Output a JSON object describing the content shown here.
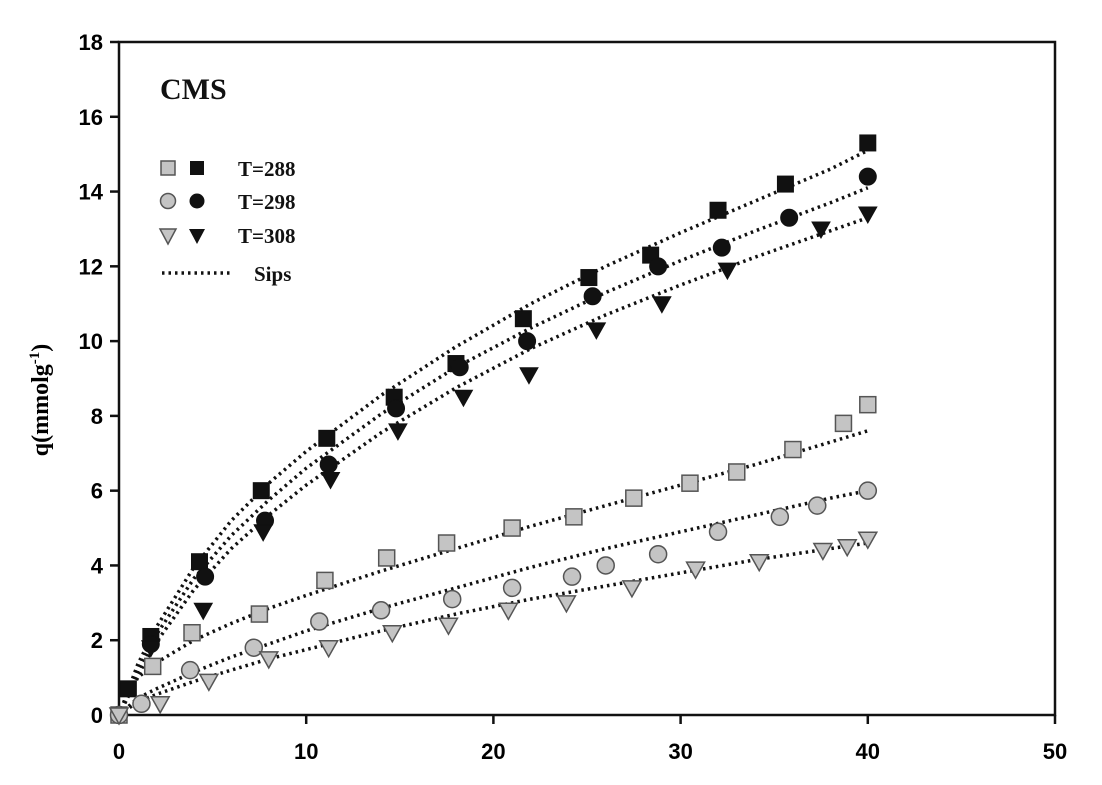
{
  "chart_data": {
    "type": "scatter",
    "panel_label": "CMS",
    "xlabel": "",
    "ylabel": "q(mmolg",
    "ylabel_sup": "-1",
    "ylabel_close": ")",
    "xlim": [
      0,
      50
    ],
    "ylim": [
      0,
      18
    ],
    "xticks": [
      0,
      10,
      20,
      30,
      40,
      50
    ],
    "yticks": [
      0,
      2,
      4,
      6,
      8,
      10,
      12,
      14,
      16,
      18
    ],
    "grid": false,
    "legend_position": "top-left",
    "legend": [
      {
        "label": "T=288",
        "marker": "square"
      },
      {
        "label": "T=298",
        "marker": "circle"
      },
      {
        "label": "T=308",
        "marker": "triangle-down"
      },
      {
        "label": "Sips",
        "marker": "dotted-line"
      }
    ],
    "colors": {
      "open_fill": "#c4c4c4",
      "open_stroke": "#555555",
      "filled": "#111111",
      "fit_line": "#111111"
    },
    "series": [
      {
        "temperature": "T=288",
        "marker": "square",
        "style": "filled",
        "x": [
          0,
          0.5,
          1.7,
          4.3,
          7.6,
          11.1,
          14.7,
          18.0,
          21.6,
          25.1,
          28.4,
          32.0,
          35.6,
          40.0
        ],
        "y": [
          0,
          0.7,
          2.1,
          4.1,
          6.0,
          7.4,
          8.5,
          9.4,
          10.6,
          11.7,
          12.3,
          13.5,
          14.2,
          15.3
        ],
        "fit_x": [
          0,
          1,
          2,
          4,
          6,
          8,
          10,
          14,
          18,
          22,
          26,
          30,
          34,
          38,
          40
        ],
        "fit_y": [
          0,
          1.35,
          2.35,
          3.95,
          5.2,
          6.2,
          7.05,
          8.55,
          9.85,
          11.0,
          12.0,
          12.9,
          13.75,
          14.6,
          15.1
        ]
      },
      {
        "temperature": "T=298",
        "marker": "circle",
        "style": "filled",
        "x": [
          0,
          1.7,
          4.6,
          7.8,
          11.2,
          14.8,
          18.2,
          21.8,
          25.3,
          28.8,
          32.2,
          35.8,
          40.0
        ],
        "y": [
          0,
          1.9,
          3.7,
          5.2,
          6.7,
          8.2,
          9.3,
          10.0,
          11.2,
          12.0,
          12.5,
          13.3,
          14.4
        ],
        "fit_x": [
          0,
          1,
          2,
          4,
          6,
          8,
          10,
          14,
          18,
          22,
          26,
          30,
          34,
          38,
          40
        ],
        "fit_y": [
          0,
          1.2,
          2.15,
          3.65,
          4.8,
          5.75,
          6.6,
          8.05,
          9.3,
          10.35,
          11.3,
          12.15,
          12.95,
          13.7,
          14.1
        ]
      },
      {
        "temperature": "T=308",
        "marker": "triangle-down",
        "style": "filled",
        "x": [
          0,
          1.7,
          4.5,
          7.7,
          11.3,
          14.9,
          18.4,
          21.9,
          25.5,
          29.0,
          32.5,
          37.5,
          40.0
        ],
        "y": [
          0,
          1.8,
          2.8,
          4.9,
          6.3,
          7.6,
          8.5,
          9.1,
          10.3,
          11.0,
          11.9,
          13.0,
          13.4
        ],
        "fit_x": [
          0,
          1,
          2,
          4,
          6,
          8,
          10,
          14,
          18,
          22,
          26,
          30,
          34,
          38,
          40
        ],
        "fit_y": [
          0,
          1.05,
          1.95,
          3.35,
          4.45,
          5.35,
          6.15,
          7.55,
          8.75,
          9.8,
          10.7,
          11.5,
          12.25,
          12.95,
          13.3
        ]
      },
      {
        "temperature": "T=288",
        "marker": "square",
        "style": "open",
        "x": [
          0,
          1.8,
          3.9,
          7.5,
          11.0,
          14.3,
          17.5,
          21.0,
          24.3,
          27.5,
          30.5,
          33.0,
          36.0,
          38.7,
          40.0
        ],
        "y": [
          0,
          1.3,
          2.2,
          2.7,
          3.6,
          4.2,
          4.6,
          5.0,
          5.3,
          5.8,
          6.2,
          6.5,
          7.1,
          7.8,
          8.3
        ],
        "fit_x": [
          0,
          1,
          2,
          4,
          6,
          8,
          10,
          14,
          18,
          22,
          26,
          30,
          34,
          38,
          40
        ],
        "fit_y": [
          0,
          1.0,
          1.4,
          2.0,
          2.45,
          2.85,
          3.2,
          3.85,
          4.45,
          5.05,
          5.6,
          6.15,
          6.7,
          7.3,
          7.6
        ]
      },
      {
        "temperature": "T=298",
        "marker": "circle",
        "style": "open",
        "x": [
          0,
          1.2,
          3.8,
          7.2,
          10.7,
          14.0,
          17.8,
          21.0,
          24.2,
          26.0,
          28.8,
          32.0,
          35.3,
          37.3,
          40.0
        ],
        "y": [
          0,
          0.3,
          1.2,
          1.8,
          2.5,
          2.8,
          3.1,
          3.4,
          3.7,
          4.0,
          4.3,
          4.9,
          5.3,
          5.6,
          6.0
        ],
        "fit_x": [
          0,
          1,
          2,
          4,
          6,
          8,
          10,
          14,
          18,
          22,
          26,
          30,
          34,
          38,
          40
        ],
        "fit_y": [
          0,
          0.45,
          0.7,
          1.15,
          1.55,
          1.9,
          2.25,
          2.85,
          3.4,
          3.95,
          4.45,
          4.9,
          5.35,
          5.8,
          6.0
        ]
      },
      {
        "temperature": "T=308",
        "marker": "triangle-down",
        "style": "open",
        "x": [
          0,
          2.2,
          4.8,
          8.0,
          11.2,
          14.6,
          17.6,
          20.8,
          23.9,
          27.4,
          30.8,
          34.2,
          37.6,
          38.9,
          40.0
        ],
        "y": [
          0,
          0.3,
          0.9,
          1.5,
          1.8,
          2.2,
          2.4,
          2.8,
          3.0,
          3.4,
          3.9,
          4.1,
          4.4,
          4.5,
          4.7
        ],
        "fit_x": [
          0,
          1,
          2,
          4,
          6,
          8,
          10,
          14,
          18,
          22,
          26,
          30,
          34,
          38,
          40
        ],
        "fit_y": [
          0,
          0.35,
          0.55,
          0.9,
          1.2,
          1.5,
          1.75,
          2.25,
          2.7,
          3.1,
          3.45,
          3.8,
          4.15,
          4.45,
          4.6
        ]
      }
    ]
  }
}
